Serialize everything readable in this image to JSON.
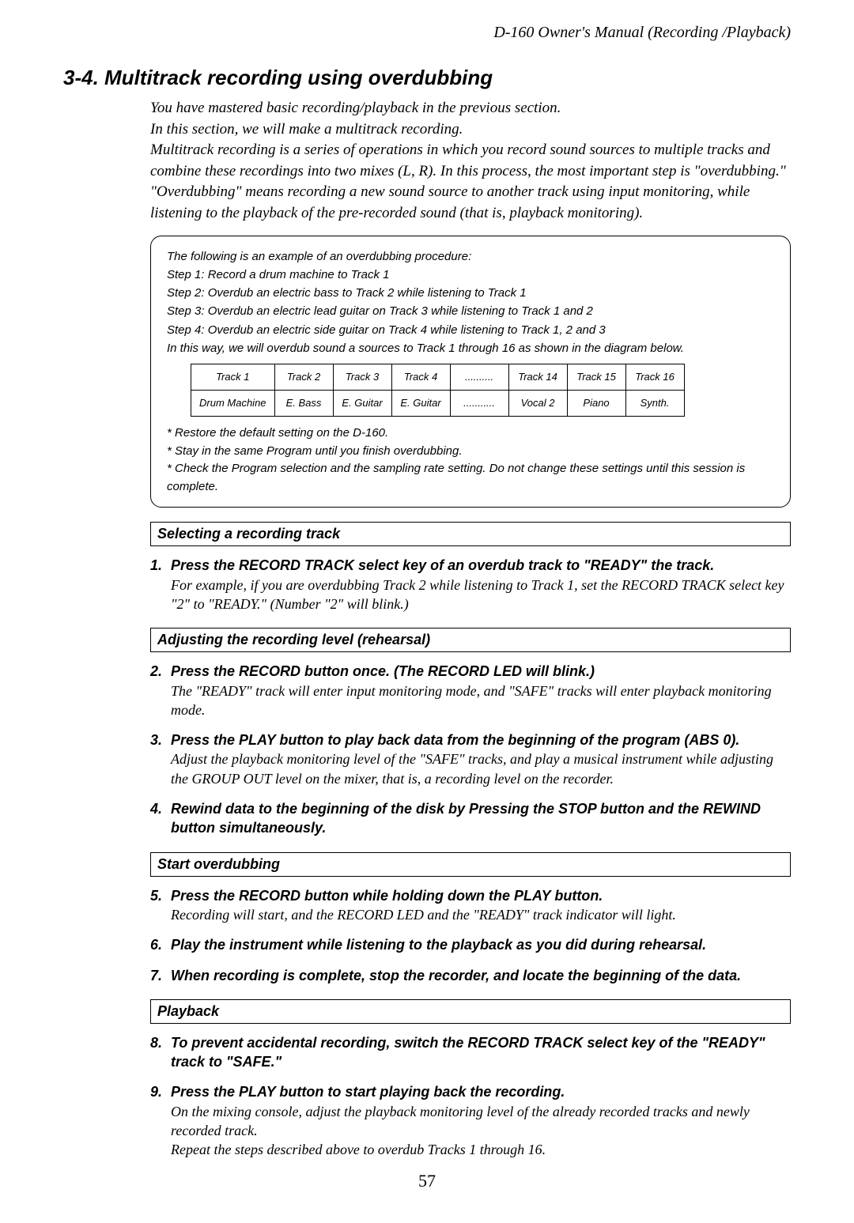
{
  "header": "D-160  Owner's Manual (Recording /Playback)",
  "title": "3-4. Multitrack recording using overdubbing",
  "intro_p1": "You have mastered basic recording/playback in the previous section.",
  "intro_p2": "In this section, we will make a multitrack recording.",
  "intro_p3": "Multitrack recording is a series of operations in which you record sound sources to multiple tracks and combine these recordings into two mixes (L, R).  In this process, the most important step is \"overdubbing.\"  \"Overdubbing\" means recording a new sound source to another track using input monitoring, while listening to the playback of the pre-recorded sound (that is, playback monitoring).",
  "procedure": {
    "lines": [
      "The following is an example of an overdubbing procedure:",
      "Step 1: Record a drum machine to Track 1",
      "Step 2: Overdub an electric bass to Track 2 while listening to Track 1",
      "Step 3: Overdub an electric lead guitar on Track 3 while listening to Track 1 and 2",
      "Step 4: Overdub an electric side guitar on Track 4 while listening to Track 1, 2 and 3",
      "In this way, we will overdub sound a sources to Track 1 through 16 as shown in the diagram below."
    ],
    "table": {
      "row1": [
        "Track 1",
        "Track 2",
        "Track 3",
        "Track 4",
        "..........",
        "Track 14",
        "Track 15",
        "Track 16"
      ],
      "row2": [
        "Drum Machine",
        "E. Bass",
        "E. Guitar",
        "E. Guitar",
        "...........",
        "Vocal 2",
        "Piano",
        "Synth."
      ]
    },
    "notes": [
      "* Restore the default setting on the D-160.",
      "* Stay in the same Program until you finish overdubbing.",
      "* Check the Program selection and the sampling rate setting.  Do not change these settings until this session is complete."
    ]
  },
  "sections": {
    "selecting": "Selecting a recording track",
    "adjusting": "Adjusting the recording level (rehearsal)",
    "start": "Start overdubbing",
    "playback": "Playback"
  },
  "steps": {
    "s1": {
      "num": "1.",
      "head": "Press the RECORD TRACK select key of an overdub track to \"READY\" the track.",
      "body": "For example, if you are overdubbing Track 2 while listening to Track 1, set the RECORD TRACK select key \"2\" to \"READY.\" (Number \"2\" will blink.)"
    },
    "s2": {
      "num": "2.",
      "head": "Press the RECORD button once. (The RECORD LED will blink.)",
      "body": "The \"READY\" track will enter input monitoring mode, and \"SAFE\" tracks will enter playback monitoring mode."
    },
    "s3": {
      "num": "3.",
      "head": "Press the PLAY button to play back data from the beginning of the program (ABS 0).",
      "body": "Adjust the playback monitoring level of the \"SAFE\" tracks, and play a musical instrument while adjusting the GROUP OUT level on the mixer, that is, a recording level on the recorder."
    },
    "s4": {
      "num": "4.",
      "head": "Rewind data to the beginning of the disk by Pressing the STOP button and the REWIND button simultaneously."
    },
    "s5": {
      "num": "5.",
      "head": "Press the RECORD button while holding down the PLAY button.",
      "body": "Recording will start, and the RECORD LED and the \"READY\" track indicator will light."
    },
    "s6": {
      "num": "6.",
      "head": "Play the instrument while listening to the playback as you did during rehearsal."
    },
    "s7": {
      "num": "7.",
      "head": "When recording is complete, stop the recorder, and locate the beginning of the data."
    },
    "s8": {
      "num": "8.",
      "head": "To prevent accidental recording, switch the RECORD TRACK select key of the \"READY\" track to \"SAFE.\""
    },
    "s9": {
      "num": "9.",
      "head": "Press the PLAY button to start playing back the recording.",
      "body": "On the mixing console, adjust the playback monitoring level of the already recorded tracks and newly recorded track.",
      "body2": "Repeat the steps described above to overdub Tracks 1 through 16."
    }
  },
  "pagenum": "57"
}
